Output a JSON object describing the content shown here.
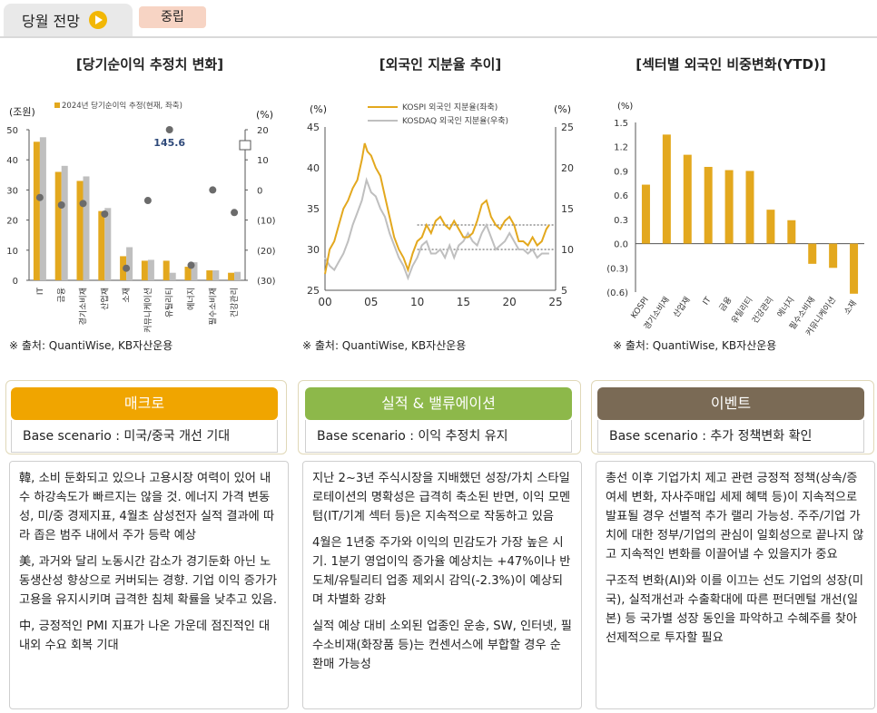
{
  "header": {
    "tab_label": "당월 전망",
    "badge_label": "중립"
  },
  "colors": {
    "gold": "#E3A81E",
    "gray": "#BFBFBF",
    "macro": "#F0A500",
    "earnings": "#8DB84A",
    "event": "#7A6A55"
  },
  "charts": [
    {
      "title": "[당기순이익 추정치 변화]",
      "source": "※ 출처: QuantiWise, KB자산운용"
    },
    {
      "title": "[외국인 지분율 추이]",
      "source": "※ 출처: QuantiWise, KB자산운용"
    },
    {
      "title": "[섹터별 외국인 비중변화(YTD)]",
      "source": "※ 출처: QuantiWise, KB자산운용"
    }
  ],
  "chart_data": [
    {
      "type": "bar",
      "title": "[당기순이익 추정치 변화]",
      "left_unit": "(조원)",
      "right_unit": "(%)",
      "legend": "2024년 당기순이익 추정(현재, 좌축)",
      "annotation": "145.6",
      "categories": [
        "IT",
        "금융",
        "경기소비재",
        "산업재",
        "소재",
        "커뮤니케이션",
        "유틸리티",
        "에너지",
        "필수소비재",
        "건강관리"
      ],
      "series": [
        {
          "name": "2024년 당기순이익 추정(현재, 좌축)",
          "values": [
            46,
            36,
            33,
            23,
            8,
            6.5,
            6.5,
            4.5,
            3.3,
            2.5
          ]
        },
        {
          "values": [
            47.5,
            38,
            34.5,
            24,
            11,
            6.8,
            2.5,
            6,
            3.3,
            2.8
          ]
        }
      ],
      "dots": [
        -2.5,
        -5,
        -4.5,
        -8,
        -26,
        -3.5,
        20,
        -25,
        0,
        -7.5
      ],
      "left_ticks": [
        "0",
        "10",
        "20",
        "30",
        "40",
        "50"
      ],
      "right_ticks": [
        "(30)",
        "(20)",
        "(10)",
        "0",
        "10",
        "20"
      ],
      "ylim_left": [
        0,
        50
      ],
      "ylim_right": [
        -30,
        20
      ]
    },
    {
      "type": "line",
      "title": "[외국인 지분율 추이]",
      "left_unit": "(%)",
      "right_unit": "(%)",
      "series": [
        {
          "name": "KOSPI 외국인 지분율(좌축)",
          "axis": "left"
        },
        {
          "name": "KOSDAQ 외국인 지분율(우축)",
          "axis": "right"
        }
      ],
      "x_ticks": [
        "00",
        "05",
        "10",
        "15",
        "20",
        "25"
      ],
      "left_ticks": [
        "25",
        "30",
        "35",
        "40",
        "45"
      ],
      "right_ticks": [
        "5",
        "10",
        "15",
        "20",
        "25"
      ],
      "xlim": [
        0,
        25
      ],
      "ylim_left": [
        25,
        45
      ],
      "ylim_right": [
        5,
        25
      ],
      "kospi": [
        [
          0,
          27
        ],
        [
          0.5,
          30
        ],
        [
          1,
          31
        ],
        [
          1.5,
          33
        ],
        [
          2,
          35
        ],
        [
          2.5,
          36
        ],
        [
          3,
          37.5
        ],
        [
          3.5,
          38.5
        ],
        [
          4,
          41
        ],
        [
          4.3,
          43
        ],
        [
          4.6,
          42
        ],
        [
          5,
          41.5
        ],
        [
          5.5,
          40
        ],
        [
          6,
          39
        ],
        [
          6.5,
          36.5
        ],
        [
          7,
          34
        ],
        [
          7.5,
          31.5
        ],
        [
          8,
          30
        ],
        [
          8.5,
          29
        ],
        [
          9,
          27.5
        ],
        [
          9.5,
          29.5
        ],
        [
          10,
          31
        ],
        [
          10.5,
          31.5
        ],
        [
          11,
          33
        ],
        [
          11.5,
          32
        ],
        [
          12,
          33.5
        ],
        [
          12.5,
          34
        ],
        [
          13,
          33
        ],
        [
          13.5,
          32.5
        ],
        [
          14,
          33.5
        ],
        [
          14.5,
          32.5
        ],
        [
          15,
          31.5
        ],
        [
          15.5,
          31.5
        ],
        [
          16,
          32
        ],
        [
          16.5,
          33.5
        ],
        [
          17,
          35.5
        ],
        [
          17.5,
          36
        ],
        [
          18,
          34
        ],
        [
          18.5,
          33
        ],
        [
          19,
          32.5
        ],
        [
          19.5,
          33.5
        ],
        [
          20,
          34
        ],
        [
          20.5,
          33
        ],
        [
          21,
          31
        ],
        [
          21.5,
          31
        ],
        [
          22,
          30.5
        ],
        [
          22.5,
          31.5
        ],
        [
          23,
          30.5
        ],
        [
          23.5,
          31
        ],
        [
          24,
          32.5
        ],
        [
          24.3,
          33
        ]
      ],
      "kosdaq": [
        [
          0,
          9
        ],
        [
          0.5,
          8
        ],
        [
          1,
          7.5
        ],
        [
          1.5,
          8.5
        ],
        [
          2,
          9.5
        ],
        [
          2.5,
          11
        ],
        [
          3,
          13
        ],
        [
          3.5,
          14.5
        ],
        [
          4,
          16
        ],
        [
          4.5,
          18.5
        ],
        [
          5,
          17
        ],
        [
          5.5,
          16.5
        ],
        [
          6,
          15
        ],
        [
          6.5,
          14
        ],
        [
          7,
          12
        ],
        [
          7.5,
          10.5
        ],
        [
          8,
          9
        ],
        [
          8.5,
          8
        ],
        [
          9,
          6.5
        ],
        [
          9.5,
          8
        ],
        [
          10,
          9
        ],
        [
          10.5,
          10.5
        ],
        [
          11,
          11
        ],
        [
          11.5,
          9.5
        ],
        [
          12,
          9.5
        ],
        [
          12.5,
          10
        ],
        [
          13,
          9
        ],
        [
          13.5,
          10.5
        ],
        [
          14,
          9
        ],
        [
          14.5,
          10.5
        ],
        [
          15,
          11
        ],
        [
          15.5,
          12
        ],
        [
          16,
          11
        ],
        [
          16.5,
          10.5
        ],
        [
          17,
          12
        ],
        [
          17.5,
          13
        ],
        [
          18,
          11.5
        ],
        [
          18.5,
          10
        ],
        [
          19,
          10.5
        ],
        [
          19.5,
          11
        ],
        [
          20,
          12
        ],
        [
          20.5,
          11
        ],
        [
          21,
          10
        ],
        [
          21.5,
          10
        ],
        [
          22,
          9.5
        ],
        [
          22.5,
          10
        ],
        [
          23,
          9
        ],
        [
          23.5,
          9.5
        ],
        [
          24,
          9.5
        ],
        [
          24.3,
          9.5
        ]
      ],
      "reference_lines": [
        {
          "axis": "left",
          "value": 33,
          "from": 10
        },
        {
          "axis": "right",
          "value": 10,
          "from": 10
        }
      ]
    },
    {
      "type": "bar",
      "title": "[섹터별 외국인 비중변화(YTD)]",
      "unit": "(%)",
      "categories": [
        "KOSPI",
        "경기소비재",
        "산업재",
        "IT",
        "금융",
        "유틸리티",
        "건강관리",
        "에너지",
        "필수소비재",
        "커뮤니케이션",
        "소재"
      ],
      "values": [
        0.73,
        1.35,
        1.1,
        0.95,
        0.91,
        0.9,
        0.42,
        0.29,
        -0.25,
        -0.3,
        -0.62
      ],
      "ticks": [
        "1.5",
        "1.2",
        "0.9",
        "0.6",
        "0.3",
        "0.0",
        "(0.3)",
        "(0.6)"
      ],
      "ylim": [
        -0.6,
        1.5
      ]
    }
  ],
  "panels": [
    {
      "title": "매크로",
      "scenario": "Base scenario : 미국/중국 개선 기대",
      "paragraphs": [
        "韓, 소비 둔화되고 있으나 고용시장 여력이 있어 내수 하강속도가 빠르지는 않을 것. 에너지 가격 변동성, 미/중 경제지표, 4월초 삼성전자 실적 결과에 따라 좁은 범주 내에서 주가 등락 예상",
        "美, 과거와 달리 노동시간 감소가 경기둔화 아닌 노동생산성 향상으로 커버되는 경향. 기업 이익 증가가 고용을 유지시키며 급격한 침체 확률을 낮추고 있음.",
        "中, 긍정적인  PMI 지표가 나온 가운데 점진적인 대내외 수요 회복 기대"
      ]
    },
    {
      "title": "실적 & 밸류에이션",
      "scenario": "Base scenario : 이익 추정치 유지",
      "paragraphs": [
        "지난 2~3년 주식시장을 지배했던 성장/가치 스타일 로테이션의 명확성은 급격히 축소된 반면, 이익 모멘텀(IT/기계 섹터 등)은 지속적으로 작동하고 있음",
        "4월은 1년중 주가와 이익의 민감도가 가장 높은 시기. 1분기 영업이익 증가율 예상치는 +47%이나 반도체/유틸리티 업종 제외시 감익(-2.3%)이 예상되며 차별화 강화",
        "실적 예상 대비 소외된 업종인 운송, SW, 인터넷, 필수소비재(화장품 등)는 컨센서스에 부합할 경우 순환매 가능성"
      ]
    },
    {
      "title": "이벤트",
      "scenario": "Base scenario : 추가 정책변화 확인",
      "paragraphs": [
        "총선 이후 기업가치 제고 관련 긍정적 정책(상속/증여세 변화, 자사주매입 세제 혜택 등)이 지속적으로 발표될 경우 선별적 추가 랠리 가능성. 주주/기업 가치에 대한 정부/기업의 관심이 일회성으로 끝나지 않고 지속적인 변화를 이끌어낼 수 있을지가 중요",
        "구조적 변화(AI)와 이를 이끄는 선도 기업의 성장(미국), 실적개선과 수출확대에 따른 펀더멘털 개선(일본) 등 국가별 성장 동인을 파악하고 수혜주를 찾아 선제적으로 투자할 필요"
      ]
    }
  ]
}
